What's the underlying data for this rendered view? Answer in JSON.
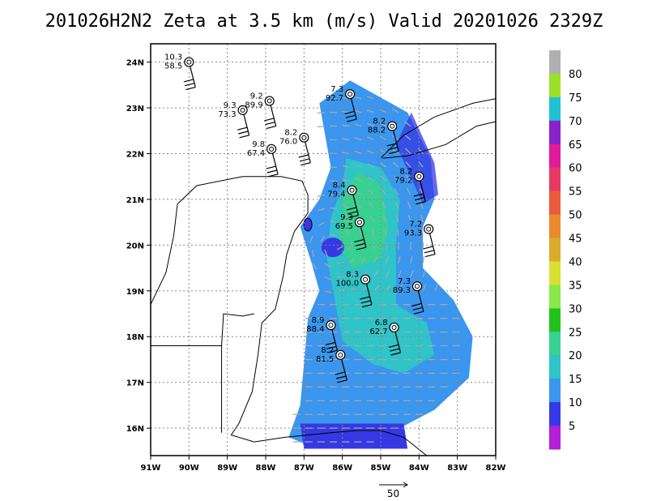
{
  "chart_data": {
    "type": "map-overlay",
    "title": "201026H2N2 Zeta at 3.5 km (m/s) Valid 20201026 2329Z",
    "lon_range": [
      -91,
      -82
    ],
    "lat_range": [
      15.4,
      24.4
    ],
    "x_ticks": [
      "91W",
      "90W",
      "89W",
      "88W",
      "87W",
      "86W",
      "85W",
      "84W",
      "83W",
      "82W"
    ],
    "y_ticks": [
      "16N",
      "17N",
      "18N",
      "19N",
      "20N",
      "21N",
      "22N",
      "23N",
      "24N"
    ],
    "grid": true,
    "colorbar": {
      "labels": [
        "5",
        "10",
        "15",
        "20",
        "25",
        "30",
        "35",
        "40",
        "45",
        "50",
        "55",
        "60",
        "65",
        "70",
        "75",
        "80"
      ],
      "colors": [
        "#b21fd6",
        "#3538e4",
        "#3a96ee",
        "#2ec4c8",
        "#37d291",
        "#22c21d",
        "#88e84a",
        "#d8e033",
        "#dcaa2c",
        "#ea8a2c",
        "#ea5c3c",
        "#e63a64",
        "#e01a98",
        "#8822cc",
        "#20c2d2",
        "#9ce02a",
        "#b0b0b0"
      ]
    },
    "reference_vector": {
      "label": "50",
      "speed": 50
    },
    "observations": [
      {
        "lon": -90.0,
        "lat": 24.0,
        "top": "10.3",
        "bottom": "58.5"
      },
      {
        "lon": -87.9,
        "lat": 23.15,
        "top": "9.2",
        "bottom": "89.9"
      },
      {
        "lon": -88.6,
        "lat": 22.95,
        "top": "9.3",
        "bottom": "73.3"
      },
      {
        "lon": -85.8,
        "lat": 23.3,
        "top": "7.3",
        "bottom": "92.7"
      },
      {
        "lon": -84.7,
        "lat": 22.6,
        "top": "8.2",
        "bottom": "88.2"
      },
      {
        "lon": -87.0,
        "lat": 22.35,
        "top": "8.2",
        "bottom": "76.0"
      },
      {
        "lon": -87.85,
        "lat": 22.1,
        "top": "9.8",
        "bottom": "67.4"
      },
      {
        "lon": -84.0,
        "lat": 21.5,
        "top": "8.2",
        "bottom": "79.2"
      },
      {
        "lon": -85.75,
        "lat": 21.2,
        "top": "8.4",
        "bottom": "79.4"
      },
      {
        "lon": -85.55,
        "lat": 20.5,
        "top": "9.3",
        "bottom": "69.5"
      },
      {
        "lon": -83.75,
        "lat": 20.35,
        "top": "7.2",
        "bottom": "93.3"
      },
      {
        "lon": -85.4,
        "lat": 19.25,
        "top": "8.3",
        "bottom": "100.0"
      },
      {
        "lon": -84.05,
        "lat": 19.1,
        "top": "7.3",
        "bottom": "89.3"
      },
      {
        "lon": -86.3,
        "lat": 18.25,
        "top": "8.9",
        "bottom": "88.4"
      },
      {
        "lon": -84.65,
        "lat": 18.2,
        "top": "6.8",
        "bottom": "62.7"
      },
      {
        "lon": -86.05,
        "lat": 17.6,
        "top": "8.2",
        "bottom": "81.5"
      }
    ]
  }
}
